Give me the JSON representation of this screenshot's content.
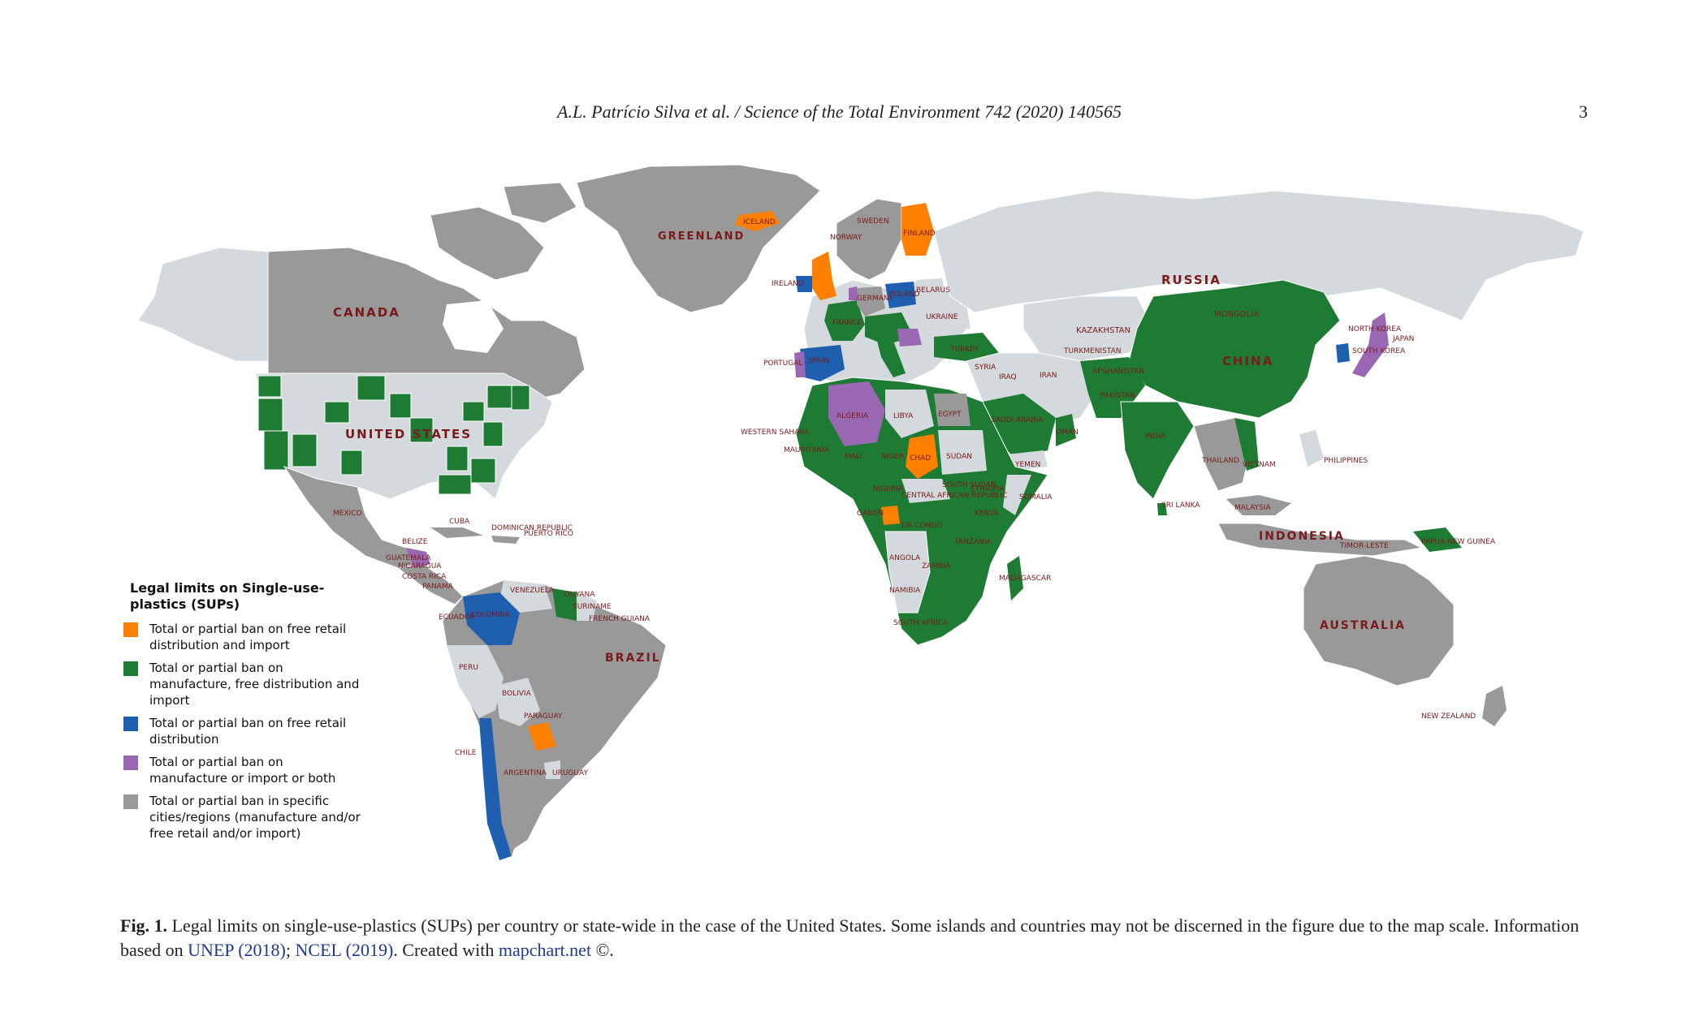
{
  "header": {
    "citation": "A.L. Patrício Silva et al. / Science of the Total Environment 742 (2020) 140565",
    "page_number": "3"
  },
  "colors": {
    "orange": "#ff8000",
    "green": "#1e7b34",
    "blue": "#1f5fb0",
    "purple": "#9a68b2",
    "gray": "#999999",
    "no_data": "#d3d9dc",
    "label": "#7a1a1a"
  },
  "legend": {
    "title": "Legal limits on Single-use-plastics (SUPs)",
    "items": [
      {
        "color": "#ff8000",
        "label": "Total or partial ban on free retail distribution and import"
      },
      {
        "color": "#1e7b34",
        "label": "Total or partial ban on manufacture, free distribution and import"
      },
      {
        "color": "#1f5fb0",
        "label": "Total or partial ban on free retail distribution"
      },
      {
        "color": "#9a68b2",
        "label": "Total or partial ban on manufacture or import or both"
      },
      {
        "color": "#999999",
        "label": "Total or partial ban in specific cities/regions (manufacture and/or free retail and/or import)"
      }
    ]
  },
  "map_labels": {
    "greenland": "GREENLAND",
    "canada": "CANADA",
    "united_states": "UNITED STATES",
    "mexico": "MEXICO",
    "cuba": "CUBA",
    "russia": "RUSSIA",
    "kazakhstan": "KAZAKHSTAN",
    "mongolia": "MONGOLIA",
    "china": "CHINA",
    "india": "INDIA",
    "iran": "IRAN",
    "turkey": "TURKEY",
    "iraq": "IRAQ",
    "saudi_arabia": "SAUDI ARABIA",
    "yemen": "YEMEN",
    "algeria": "ALGERIA",
    "libya": "LIBYA",
    "egypt": "EGYPT",
    "mali": "MALI",
    "niger": "NIGER",
    "chad": "CHAD",
    "sudan": "SUDAN",
    "nigeria": "NIGERIA",
    "ethiopia": "ETHIOPIA",
    "somalia": "SOMALIA",
    "kenya": "KENYA",
    "dr_congo": "DR CONGO",
    "tanzania": "TANZANIA",
    "angola": "ANGOLA",
    "zambia": "ZAMBIA",
    "namibia": "NAMIBIA",
    "south_africa": "SOUTH AFRICA",
    "madagascar": "MADAGASCAR",
    "brazil": "BRAZIL",
    "venezuela": "VENEZUELA",
    "colombia": "COLOMBIA",
    "ecuador": "ECUADOR",
    "peru": "PERU",
    "bolivia": "BOLIVIA",
    "paraguay": "PARAGUAY",
    "chile": "CHILE",
    "argentina": "ARGENTINA",
    "uruguay": "URUGUAY",
    "guyana": "GUYANA",
    "suriname": "SURINAME",
    "french_guiana": "FRENCH GUIANA",
    "iceland": "ICELAND",
    "finland": "FINLAND",
    "sweden": "SWEDEN",
    "norway": "NORWAY",
    "ireland": "IRELAND",
    "portugal": "PORTUGAL",
    "spain": "SPAIN",
    "france": "FRANCE",
    "germany": "GERMANY",
    "poland": "POLAND",
    "belarus": "BELARUS",
    "ukraine": "UKRAINE",
    "western_sahara": "WESTERN SAHARA",
    "mauritania": "MAURITANIA",
    "syria": "SYRIA",
    "oman": "OMAN",
    "turkmenistan": "TURKMENISTAN",
    "afghanistan": "AFGHANISTAN",
    "pakistan": "PAKISTAN",
    "sri_lanka": "SRI LANKA",
    "thailand": "THAILAND",
    "vietnam": "VIETNAM",
    "philippines": "PHILIPPINES",
    "malaysia": "MALAYSIA",
    "indonesia": "INDONESIA",
    "papua_new_guinea": "PAPUA NEW GUINEA",
    "timor_leste": "TIMOR-LESTE",
    "japan": "JAPAN",
    "south_korea": "SOUTH KOREA",
    "north_korea": "NORTH KOREA",
    "australia": "AUSTRALIA",
    "new_zealand": "NEW ZEALAND",
    "gabon": "GABON",
    "central_african_republic": "CENTRAL AFRICAN REPUBLIC",
    "south_sudan": "SOUTH SUDAN",
    "guatemala": "GUATEMALA",
    "nicaragua": "NICARAGUA",
    "costa_rica": "COSTA RICA",
    "panama": "PANAMA",
    "dominican_republic": "DOMINICAN REPUBLIC",
    "puerto_rico": "PUERTO RICO",
    "belize": "BELIZE"
  },
  "caption": {
    "fig_label": "Fig. 1.",
    "text_1": " Legal limits on single-use-plastics (SUPs) per country or state-wide in the case of the United States. Some islands and countries may not be discerned in the figure due to the map scale. Information based on ",
    "ref_1": "UNEP (2018)",
    "sep_1": "; ",
    "ref_2": "NCEL (2019)",
    "text_2": ". Created with ",
    "ref_3": "mapchart.net",
    "text_3": " ©."
  }
}
